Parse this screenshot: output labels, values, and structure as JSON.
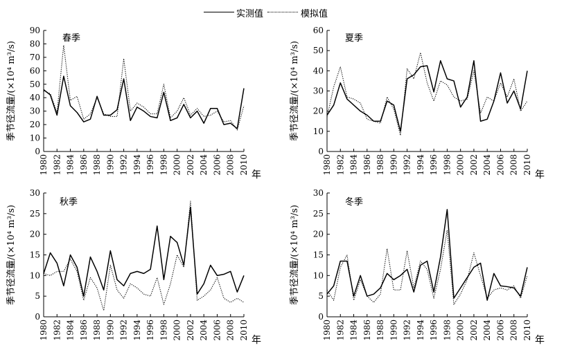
{
  "legend": {
    "observed_label": "实测值",
    "simulated_label": "模拟值"
  },
  "chart_data": [
    {
      "type": "line",
      "title": "春季",
      "ylabel": "季节径流量/(×10⁴ m³/s)",
      "xunit": "年",
      "ylim": [
        0,
        90
      ],
      "yticks": [
        0,
        10,
        20,
        30,
        40,
        50,
        60,
        70,
        80,
        90
      ],
      "xlim": [
        1980,
        2010
      ],
      "xticks": [
        1980,
        1982,
        1984,
        1986,
        1988,
        1990,
        1992,
        1994,
        1996,
        1998,
        2000,
        2002,
        2004,
        2006,
        2008,
        2010
      ],
      "x": [
        1980,
        1981,
        1982,
        1983,
        1984,
        1985,
        1986,
        1987,
        1988,
        1989,
        1990,
        1991,
        1992,
        1993,
        1994,
        1995,
        1996,
        1997,
        1998,
        1999,
        2000,
        2001,
        2002,
        2003,
        2004,
        2005,
        2006,
        2007,
        2008,
        2009,
        2010
      ],
      "series": [
        {
          "name": "实测值",
          "style": "solid",
          "values": [
            46,
            42,
            27,
            56,
            34,
            29,
            22,
            24,
            41,
            27,
            27,
            31,
            54,
            23,
            33,
            30,
            26,
            25,
            44,
            23,
            25,
            35,
            25,
            30,
            21,
            32,
            32,
            20,
            21,
            17,
            47
          ]
        },
        {
          "name": "模拟值",
          "style": "dotted",
          "values": [
            45,
            43,
            29,
            79,
            38,
            41,
            24,
            28,
            40,
            28,
            26,
            26,
            69,
            30,
            36,
            33,
            28,
            28,
            50,
            25,
            30,
            40,
            27,
            32,
            26,
            27,
            30,
            22,
            23,
            16,
            34
          ]
        }
      ]
    },
    {
      "type": "line",
      "title": "夏季",
      "ylabel": "季节径流量/(×10⁴ m³/s)",
      "xunit": "年",
      "ylim": [
        0,
        60
      ],
      "yticks": [
        0,
        10,
        20,
        30,
        40,
        50,
        60
      ],
      "xlim": [
        1980,
        2010
      ],
      "xticks": [
        1980,
        1982,
        1984,
        1986,
        1988,
        1990,
        1992,
        1994,
        1996,
        1998,
        2000,
        2002,
        2004,
        2006,
        2008,
        2010
      ],
      "x": [
        1980,
        1981,
        1982,
        1983,
        1984,
        1985,
        1986,
        1987,
        1988,
        1989,
        1990,
        1991,
        1992,
        1993,
        1994,
        1995,
        1996,
        1997,
        1998,
        1999,
        2000,
        2001,
        2002,
        2003,
        2004,
        2005,
        2006,
        2007,
        2008,
        2009,
        2010
      ],
      "series": [
        {
          "name": "实测值",
          "style": "solid",
          "values": [
            18,
            23,
            34,
            26,
            23,
            20,
            18,
            15,
            15,
            25,
            23,
            10,
            36,
            38,
            42,
            42.5,
            29.5,
            45,
            36,
            35,
            22,
            27,
            45,
            15,
            16,
            25,
            39,
            24,
            30,
            21,
            40
          ]
        },
        {
          "name": "模拟值",
          "style": "dotted",
          "values": [
            17,
            32,
            42,
            27,
            26,
            24,
            16,
            15,
            14,
            27,
            21,
            8,
            41,
            36,
            49,
            34,
            25,
            35,
            33,
            27,
            25,
            26,
            40,
            19,
            27,
            25,
            34,
            27,
            36,
            20,
            25
          ]
        }
      ]
    },
    {
      "type": "line",
      "title": "秋季",
      "ylabel": "季节径流量/(×10⁴ m³/s)",
      "xunit": "年",
      "ylim": [
        0,
        30
      ],
      "yticks": [
        0,
        5,
        10,
        15,
        20,
        25,
        30
      ],
      "xlim": [
        1980,
        2010
      ],
      "xticks": [
        1980,
        1982,
        1984,
        1986,
        1988,
        1990,
        1992,
        1994,
        1996,
        1998,
        2000,
        2002,
        2004,
        2006,
        2008,
        2010
      ],
      "x": [
        1980,
        1981,
        1982,
        1983,
        1984,
        1985,
        1986,
        1987,
        1988,
        1989,
        1990,
        1991,
        1992,
        1993,
        1994,
        1995,
        1996,
        1997,
        1998,
        1999,
        2000,
        2001,
        2002,
        2003,
        2004,
        2005,
        2006,
        2007,
        2008,
        2009,
        2010
      ],
      "series": [
        {
          "name": "实测值",
          "style": "solid",
          "values": [
            10.5,
            15.5,
            13,
            7.5,
            15,
            12,
            5,
            14.5,
            11,
            6.5,
            16,
            9,
            7.5,
            10.5,
            11,
            10.5,
            11.5,
            22,
            9,
            19.5,
            18,
            12.5,
            26.5,
            5.5,
            8,
            12.5,
            10,
            10.3,
            11,
            6,
            10
          ]
        },
        {
          "name": "模拟值",
          "style": "dotted",
          "values": [
            10.5,
            10,
            11,
            11,
            14,
            11,
            4,
            9.5,
            7,
            1.5,
            12.5,
            6.5,
            4.5,
            8,
            7,
            5.5,
            5,
            9.5,
            3,
            8,
            15,
            12,
            28,
            4,
            5,
            6.5,
            9.5,
            4.5,
            3.5,
            4.5,
            3.5
          ]
        }
      ]
    },
    {
      "type": "line",
      "title": "冬季",
      "ylabel": "季节径流量/(×10⁴ m³/s)",
      "xunit": "年",
      "ylim": [
        0,
        30
      ],
      "yticks": [
        0,
        5,
        10,
        15,
        20,
        25,
        30
      ],
      "xlim": [
        1980,
        2010
      ],
      "xticks": [
        1980,
        1982,
        1984,
        1986,
        1988,
        1990,
        1992,
        1994,
        1996,
        1998,
        2000,
        2002,
        2004,
        2006,
        2008,
        2010
      ],
      "x": [
        1980,
        1981,
        1982,
        1983,
        1984,
        1985,
        1986,
        1987,
        1988,
        1989,
        1990,
        1991,
        1992,
        1993,
        1994,
        1995,
        1996,
        1997,
        1998,
        1999,
        2000,
        2001,
        2002,
        2003,
        2004,
        2005,
        2006,
        2007,
        2008,
        2009,
        2010
      ],
      "series": [
        {
          "name": "实测值",
          "style": "solid",
          "values": [
            5.5,
            7.5,
            13.5,
            13.5,
            5,
            10,
            5,
            5.5,
            7,
            10.5,
            9,
            10,
            11.5,
            6,
            12.5,
            13.5,
            6,
            14.5,
            26,
            4.5,
            7,
            9.5,
            12,
            13,
            4,
            10.5,
            7.5,
            7.3,
            7,
            5,
            12
          ]
        },
        {
          "name": "模拟值",
          "style": "dotted",
          "values": [
            6.5,
            4,
            12,
            15,
            4,
            9,
            5,
            3.5,
            5.5,
            16.5,
            6.5,
            6.5,
            16,
            7,
            13.5,
            11.5,
            4.5,
            11.5,
            21,
            3,
            5.5,
            9,
            15.5,
            10,
            4.5,
            6.5,
            7,
            6.5,
            7.5,
            4.5,
            10
          ]
        }
      ]
    }
  ]
}
